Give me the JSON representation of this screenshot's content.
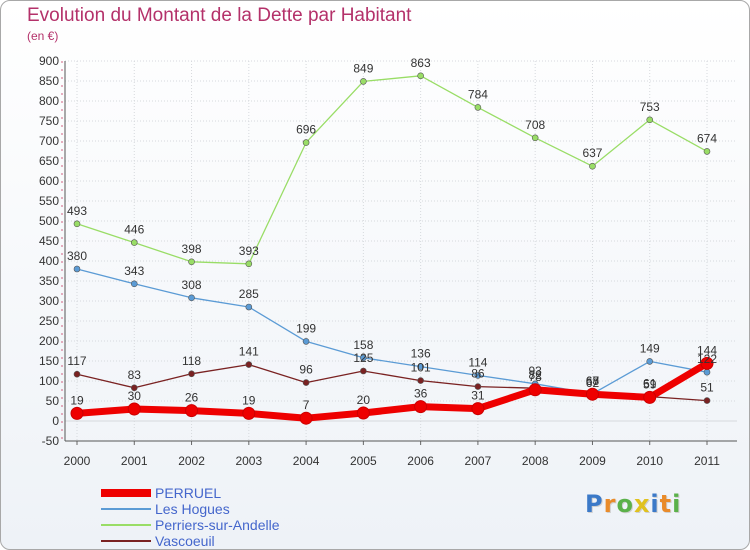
{
  "chart_data": {
    "type": "line",
    "title": "Evolution du Montant de la Dette par Habitant",
    "subtitle": "(en €)",
    "categories": [
      "2000",
      "2001",
      "2002",
      "2003",
      "2004",
      "2005",
      "2006",
      "2007",
      "2008",
      "2009",
      "2010",
      "2011"
    ],
    "ylim": [
      -50,
      900
    ],
    "yticks": [
      -50,
      0,
      50,
      100,
      150,
      200,
      250,
      300,
      350,
      400,
      450,
      500,
      550,
      600,
      650,
      700,
      750,
      800,
      850,
      900
    ],
    "grid": true,
    "legend": "bottom-left",
    "series": [
      {
        "name": "PERRUEL",
        "color": "#ee0000",
        "values": [
          19,
          30,
          26,
          19,
          7,
          20,
          36,
          31,
          78,
          67,
          59,
          144
        ]
      },
      {
        "name": "Les Hogues",
        "color": "#5b9bd5",
        "values": [
          380,
          343,
          308,
          285,
          199,
          158,
          136,
          114,
          93,
          68,
          149,
          122
        ]
      },
      {
        "name": "Perriers-sur-Andelle",
        "color": "#99dd66",
        "values": [
          493,
          446,
          398,
          393,
          696,
          849,
          863,
          784,
          708,
          637,
          753,
          674
        ]
      },
      {
        "name": "Vascoeuil",
        "color": "#7a2222",
        "values": [
          117,
          83,
          118,
          141,
          96,
          125,
          101,
          86,
          82,
          62,
          61,
          51
        ]
      }
    ]
  },
  "logo": {
    "letters": [
      "P",
      "r",
      "o",
      "x",
      "i",
      "t",
      "i"
    ],
    "colors": [
      "#3b79c8",
      "#e98b2a",
      "#5bb14a",
      "#e0c21f",
      "#3b79c8",
      "#e98b2a",
      "#5bb14a"
    ]
  }
}
